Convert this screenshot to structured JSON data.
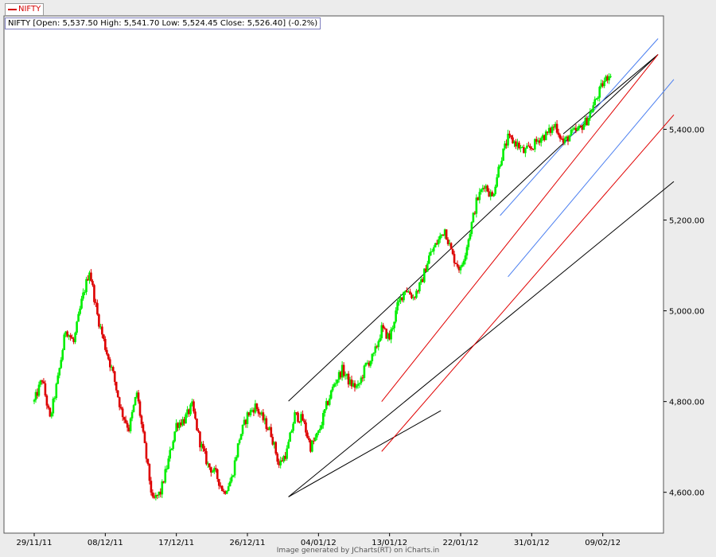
{
  "legend": {
    "label": "NIFTY",
    "color": "#d40000"
  },
  "info": {
    "text": "NIFTY [Open: 5,537.50  High: 5,541.70  Low: 5,524.45  Close: 5,526.40] (-0.2%)"
  },
  "footer": {
    "credit": "Image generated by  JCharts(RT) on iCharts.in"
  },
  "colors": {
    "up": "#00ee00",
    "down": "#dd0000",
    "background": "#ffffff",
    "channel_outer": "#000000",
    "channel_mid": "#e00000",
    "channel_inner": "#4a7ef0"
  },
  "chart_data": {
    "type": "line",
    "subtype": "candlestick (intraday)",
    "ylim": [
      4510,
      5650
    ],
    "y_ticks": [
      {
        "value": 4600,
        "label": "4,600.00"
      },
      {
        "value": 4800,
        "label": "4,800.00"
      },
      {
        "value": 5000,
        "label": "5,000.00"
      },
      {
        "value": 5200,
        "label": "5,200.00"
      },
      {
        "value": 5400,
        "label": "5,400.00"
      }
    ],
    "x_labels": [
      "29/11/11",
      "08/12/11",
      "17/12/11",
      "26/12/11",
      "04/01/12",
      "13/01/12",
      "22/01/12",
      "31/01/12",
      "09/02/12"
    ],
    "x_range": [
      "29/11/11",
      "16/02/12"
    ],
    "grid": false,
    "price_path": [
      [
        "29/11/11",
        4800
      ],
      [
        "30/11/11",
        4850
      ],
      [
        "01/12/11",
        4760
      ],
      [
        "02/12/11",
        4850
      ],
      [
        "03/12/11",
        4960
      ],
      [
        "04/12/11",
        4930
      ],
      [
        "05/12/11",
        5020
      ],
      [
        "06/12/11",
        5090
      ],
      [
        "07/12/11",
        4990
      ],
      [
        "08/12/11",
        4920
      ],
      [
        "09/12/11",
        4860
      ],
      [
        "10/12/11",
        4780
      ],
      [
        "11/12/11",
        4740
      ],
      [
        "12/12/11",
        4820
      ],
      [
        "13/12/11",
        4700
      ],
      [
        "14/12/11",
        4580
      ],
      [
        "15/12/11",
        4600
      ],
      [
        "16/12/11",
        4670
      ],
      [
        "17/12/11",
        4750
      ],
      [
        "18/12/11",
        4760
      ],
      [
        "19/12/11",
        4790
      ],
      [
        "20/12/11",
        4710
      ],
      [
        "21/12/11",
        4660
      ],
      [
        "22/12/11",
        4640
      ],
      [
        "23/12/11",
        4600
      ],
      [
        "24/12/11",
        4630
      ],
      [
        "25/12/11",
        4720
      ],
      [
        "26/12/11",
        4770
      ],
      [
        "27/12/11",
        4790
      ],
      [
        "28/12/11",
        4760
      ],
      [
        "29/12/11",
        4730
      ],
      [
        "30/12/11",
        4660
      ],
      [
        "31/12/11",
        4690
      ],
      [
        "01/01/12",
        4770
      ],
      [
        "02/01/12",
        4760
      ],
      [
        "03/01/12",
        4700
      ],
      [
        "04/01/12",
        4730
      ],
      [
        "05/01/12",
        4790
      ],
      [
        "06/01/12",
        4840
      ],
      [
        "07/01/12",
        4870
      ],
      [
        "08/01/12",
        4840
      ],
      [
        "09/01/12",
        4830
      ],
      [
        "10/01/12",
        4880
      ],
      [
        "11/01/12",
        4900
      ],
      [
        "12/01/12",
        4960
      ],
      [
        "13/01/12",
        4940
      ],
      [
        "14/01/12",
        5010
      ],
      [
        "15/01/12",
        5050
      ],
      [
        "16/01/12",
        5030
      ],
      [
        "17/01/12",
        5060
      ],
      [
        "18/01/12",
        5120
      ],
      [
        "19/01/12",
        5150
      ],
      [
        "20/01/12",
        5180
      ],
      [
        "21/01/12",
        5120
      ],
      [
        "22/01/12",
        5090
      ],
      [
        "23/01/12",
        5160
      ],
      [
        "24/01/12",
        5240
      ],
      [
        "25/01/12",
        5280
      ],
      [
        "26/01/12",
        5250
      ],
      [
        "27/01/12",
        5330
      ],
      [
        "28/01/12",
        5380
      ],
      [
        "29/01/12",
        5370
      ],
      [
        "30/01/12",
        5350
      ],
      [
        "31/01/12",
        5360
      ],
      [
        "01/02/12",
        5380
      ],
      [
        "02/02/12",
        5390
      ],
      [
        "03/02/12",
        5410
      ],
      [
        "04/02/12",
        5370
      ],
      [
        "05/02/12",
        5390
      ],
      [
        "06/02/12",
        5400
      ],
      [
        "07/02/12",
        5420
      ],
      [
        "08/02/12",
        5460
      ],
      [
        "09/02/12",
        5500
      ],
      [
        "10/02/12",
        5527
      ]
    ]
  }
}
